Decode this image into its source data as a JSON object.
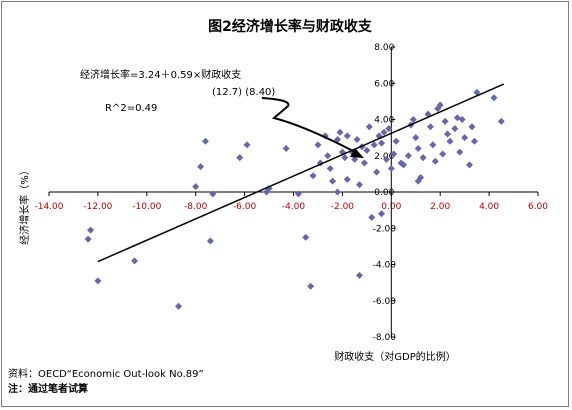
{
  "chart_data": {
    "type": "scatter",
    "title": "图2经济增长率与财政收支",
    "xlabel": "财政收支（对GDP的比例）",
    "ylabel": "经济增长率（%）",
    "xlim": [
      -14,
      6
    ],
    "ylim": [
      -8,
      8
    ],
    "x_ticks": [
      "-14.00",
      "-12.00",
      "-10.00",
      "-8.00",
      "-6.00",
      "-4.00",
      "-2.00",
      "0.00",
      "2.00",
      "4.00",
      "6.00"
    ],
    "y_ticks": [
      "8.00",
      "6.00",
      "4.00",
      "2.00",
      "0.00",
      "-2.00",
      "-4.00",
      "-6.00",
      "-8.00"
    ],
    "grid": false,
    "marker_color": "#6666aa",
    "points": [
      [
        -12.3,
        -2.1
      ],
      [
        -12.4,
        -2.6
      ],
      [
        -12.0,
        -4.9
      ],
      [
        -10.5,
        -3.8
      ],
      [
        -8.7,
        -6.3
      ],
      [
        -8.0,
        0.3
      ],
      [
        -7.8,
        1.4
      ],
      [
        -7.6,
        2.8
      ],
      [
        -7.4,
        -2.7
      ],
      [
        -7.3,
        -0.1
      ],
      [
        -6.2,
        1.9
      ],
      [
        -5.9,
        2.6
      ],
      [
        -5.1,
        0.0
      ],
      [
        -5.0,
        0.2
      ],
      [
        -4.3,
        2.4
      ],
      [
        -3.8,
        -0.1
      ],
      [
        -3.5,
        -2.5
      ],
      [
        -3.3,
        -5.2
      ],
      [
        -3.2,
        0.9
      ],
      [
        -3.0,
        2.6
      ],
      [
        -2.9,
        1.6
      ],
      [
        -2.7,
        3.1
      ],
      [
        -2.6,
        2.0
      ],
      [
        -2.5,
        1.3
      ],
      [
        -2.4,
        0.6
      ],
      [
        -2.2,
        0.0
      ],
      [
        -2.2,
        2.9
      ],
      [
        -2.1,
        3.3
      ],
      [
        -2.0,
        2.2
      ],
      [
        -1.9,
        1.9
      ],
      [
        -1.8,
        3.1
      ],
      [
        -1.8,
        0.7
      ],
      [
        -1.6,
        2.2
      ],
      [
        -1.5,
        1.8
      ],
      [
        -1.4,
        2.9
      ],
      [
        -1.3,
        -4.6
      ],
      [
        -1.3,
        0.4
      ],
      [
        -1.2,
        2.5
      ],
      [
        -1.1,
        1.6
      ],
      [
        -1.0,
        2.3
      ],
      [
        -0.9,
        3.6
      ],
      [
        -0.8,
        -1.4
      ],
      [
        -0.7,
        2.6
      ],
      [
        -0.6,
        1.1
      ],
      [
        -0.5,
        3.1
      ],
      [
        -0.4,
        2.7
      ],
      [
        -0.4,
        -1.2
      ],
      [
        -0.3,
        3.3
      ],
      [
        -0.2,
        1.8
      ],
      [
        -0.1,
        3.5
      ],
      [
        0.0,
        1.3
      ],
      [
        0.1,
        2.1
      ],
      [
        0.2,
        2.8
      ],
      [
        0.4,
        1.6
      ],
      [
        0.5,
        1.5
      ],
      [
        0.7,
        2.0
      ],
      [
        0.8,
        3.7
      ],
      [
        0.9,
        4.0
      ],
      [
        1.0,
        3.0
      ],
      [
        1.1,
        2.4
      ],
      [
        1.1,
        0.6
      ],
      [
        1.2,
        0.8
      ],
      [
        1.3,
        1.9
      ],
      [
        1.5,
        4.3
      ],
      [
        1.6,
        3.6
      ],
      [
        1.7,
        2.6
      ],
      [
        1.8,
        1.7
      ],
      [
        1.9,
        4.6
      ],
      [
        2.0,
        4.8
      ],
      [
        2.1,
        2.1
      ],
      [
        2.2,
        3.9
      ],
      [
        2.3,
        3.2
      ],
      [
        2.4,
        2.8
      ],
      [
        2.6,
        3.5
      ],
      [
        2.7,
        4.1
      ],
      [
        2.8,
        2.2
      ],
      [
        2.9,
        4.0
      ],
      [
        3.0,
        3.0
      ],
      [
        3.2,
        1.5
      ],
      [
        3.3,
        3.6
      ],
      [
        3.4,
        2.8
      ],
      [
        3.5,
        5.5
      ],
      [
        4.2,
        5.2
      ],
      [
        4.5,
        3.9
      ]
    ],
    "trendline": {
      "slope": 0.59,
      "intercept": 3.24,
      "x_from": -12.0,
      "x_to": 4.6
    },
    "annotations": {
      "equation": "经济增长率=3.24＋0.59×财政收支",
      "tstats": "(12.7)  (8.40)",
      "r2": "R^2=0.49"
    },
    "footnotes": {
      "source": "资料：OECD“Economic Out-look No.89”",
      "note": "注：通过笔者试算"
    }
  }
}
